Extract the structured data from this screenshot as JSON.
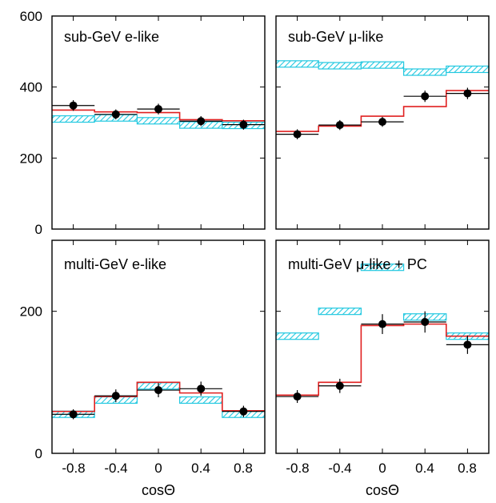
{
  "figure": {
    "x_axis_label": "cosΘ",
    "x_ticks": [
      "-0.8",
      "-0.4",
      "0",
      "0.4",
      "0.8"
    ],
    "colors": {
      "mc_line": "#e02020",
      "hatch": "#22c8e0",
      "data": "#000000",
      "frame": "#000000"
    }
  },
  "chart_data": [
    {
      "type": "step-histogram",
      "title": "sub-GeV e-like",
      "xlim": [
        -1,
        1
      ],
      "ylim": [
        0,
        600
      ],
      "y_ticks": [
        "0",
        "200",
        "400",
        "600"
      ],
      "bin_edges": [
        -1,
        -0.6,
        -0.2,
        0.2,
        0.6,
        1
      ],
      "data_points": [
        {
          "x": -0.8,
          "y": 348,
          "err": 15
        },
        {
          "x": -0.4,
          "y": 323,
          "err": 14
        },
        {
          "x": 0.0,
          "y": 338,
          "err": 15
        },
        {
          "x": 0.4,
          "y": 304,
          "err": 14
        },
        {
          "x": 0.8,
          "y": 294,
          "err": 14
        }
      ],
      "mc_oscillated": [
        335,
        330,
        328,
        308,
        305
      ],
      "mc_no_oscillation": [
        310,
        313,
        305,
        293,
        292
      ]
    },
    {
      "type": "step-histogram",
      "title": "sub-GeV μ-like",
      "xlim": [
        -1,
        1
      ],
      "ylim": [
        0,
        600
      ],
      "y_ticks": [
        "0",
        "200",
        "400",
        "600"
      ],
      "bin_edges": [
        -1,
        -0.6,
        -0.2,
        0.2,
        0.6,
        1
      ],
      "data_points": [
        {
          "x": -0.8,
          "y": 267,
          "err": 14
        },
        {
          "x": -0.4,
          "y": 293,
          "err": 14
        },
        {
          "x": 0.0,
          "y": 302,
          "err": 14
        },
        {
          "x": 0.4,
          "y": 374,
          "err": 16
        },
        {
          "x": 0.8,
          "y": 382,
          "err": 16
        }
      ],
      "mc_oscillated": [
        275,
        290,
        318,
        345,
        390
      ],
      "mc_no_oscillation": [
        465,
        460,
        462,
        442,
        450
      ]
    },
    {
      "type": "step-histogram",
      "title": "multi-GeV e-like",
      "xlim": [
        -1,
        1
      ],
      "ylim": [
        0,
        300
      ],
      "y_ticks": [
        "0",
        "200"
      ],
      "bin_edges": [
        -1,
        -0.6,
        -0.2,
        0.2,
        0.6,
        1
      ],
      "data_points": [
        {
          "x": -0.8,
          "y": 55,
          "err": 7
        },
        {
          "x": -0.4,
          "y": 81,
          "err": 9
        },
        {
          "x": 0.0,
          "y": 89,
          "err": 10
        },
        {
          "x": 0.4,
          "y": 91,
          "err": 10
        },
        {
          "x": 0.8,
          "y": 59,
          "err": 8
        }
      ],
      "mc_oscillated": [
        59,
        80,
        100,
        85,
        60
      ],
      "mc_no_oscillation": [
        55,
        75,
        95,
        75,
        55
      ]
    },
    {
      "type": "step-histogram",
      "title": "multi-GeV μ-like + PC",
      "xlim": [
        -1,
        1
      ],
      "ylim": [
        0,
        300
      ],
      "y_ticks": [
        "0",
        "200"
      ],
      "bin_edges": [
        -1,
        -0.6,
        -0.2,
        0.2,
        0.6,
        1
      ],
      "data_points": [
        {
          "x": -0.8,
          "y": 80,
          "err": 9
        },
        {
          "x": -0.4,
          "y": 95,
          "err": 10
        },
        {
          "x": 0.0,
          "y": 182,
          "err": 14
        },
        {
          "x": 0.4,
          "y": 185,
          "err": 15
        },
        {
          "x": 0.8,
          "y": 153,
          "err": 13
        }
      ],
      "mc_oscillated": [
        82,
        100,
        180,
        182,
        165
      ],
      "mc_no_oscillation": [
        165,
        200,
        262,
        192,
        165
      ]
    }
  ]
}
